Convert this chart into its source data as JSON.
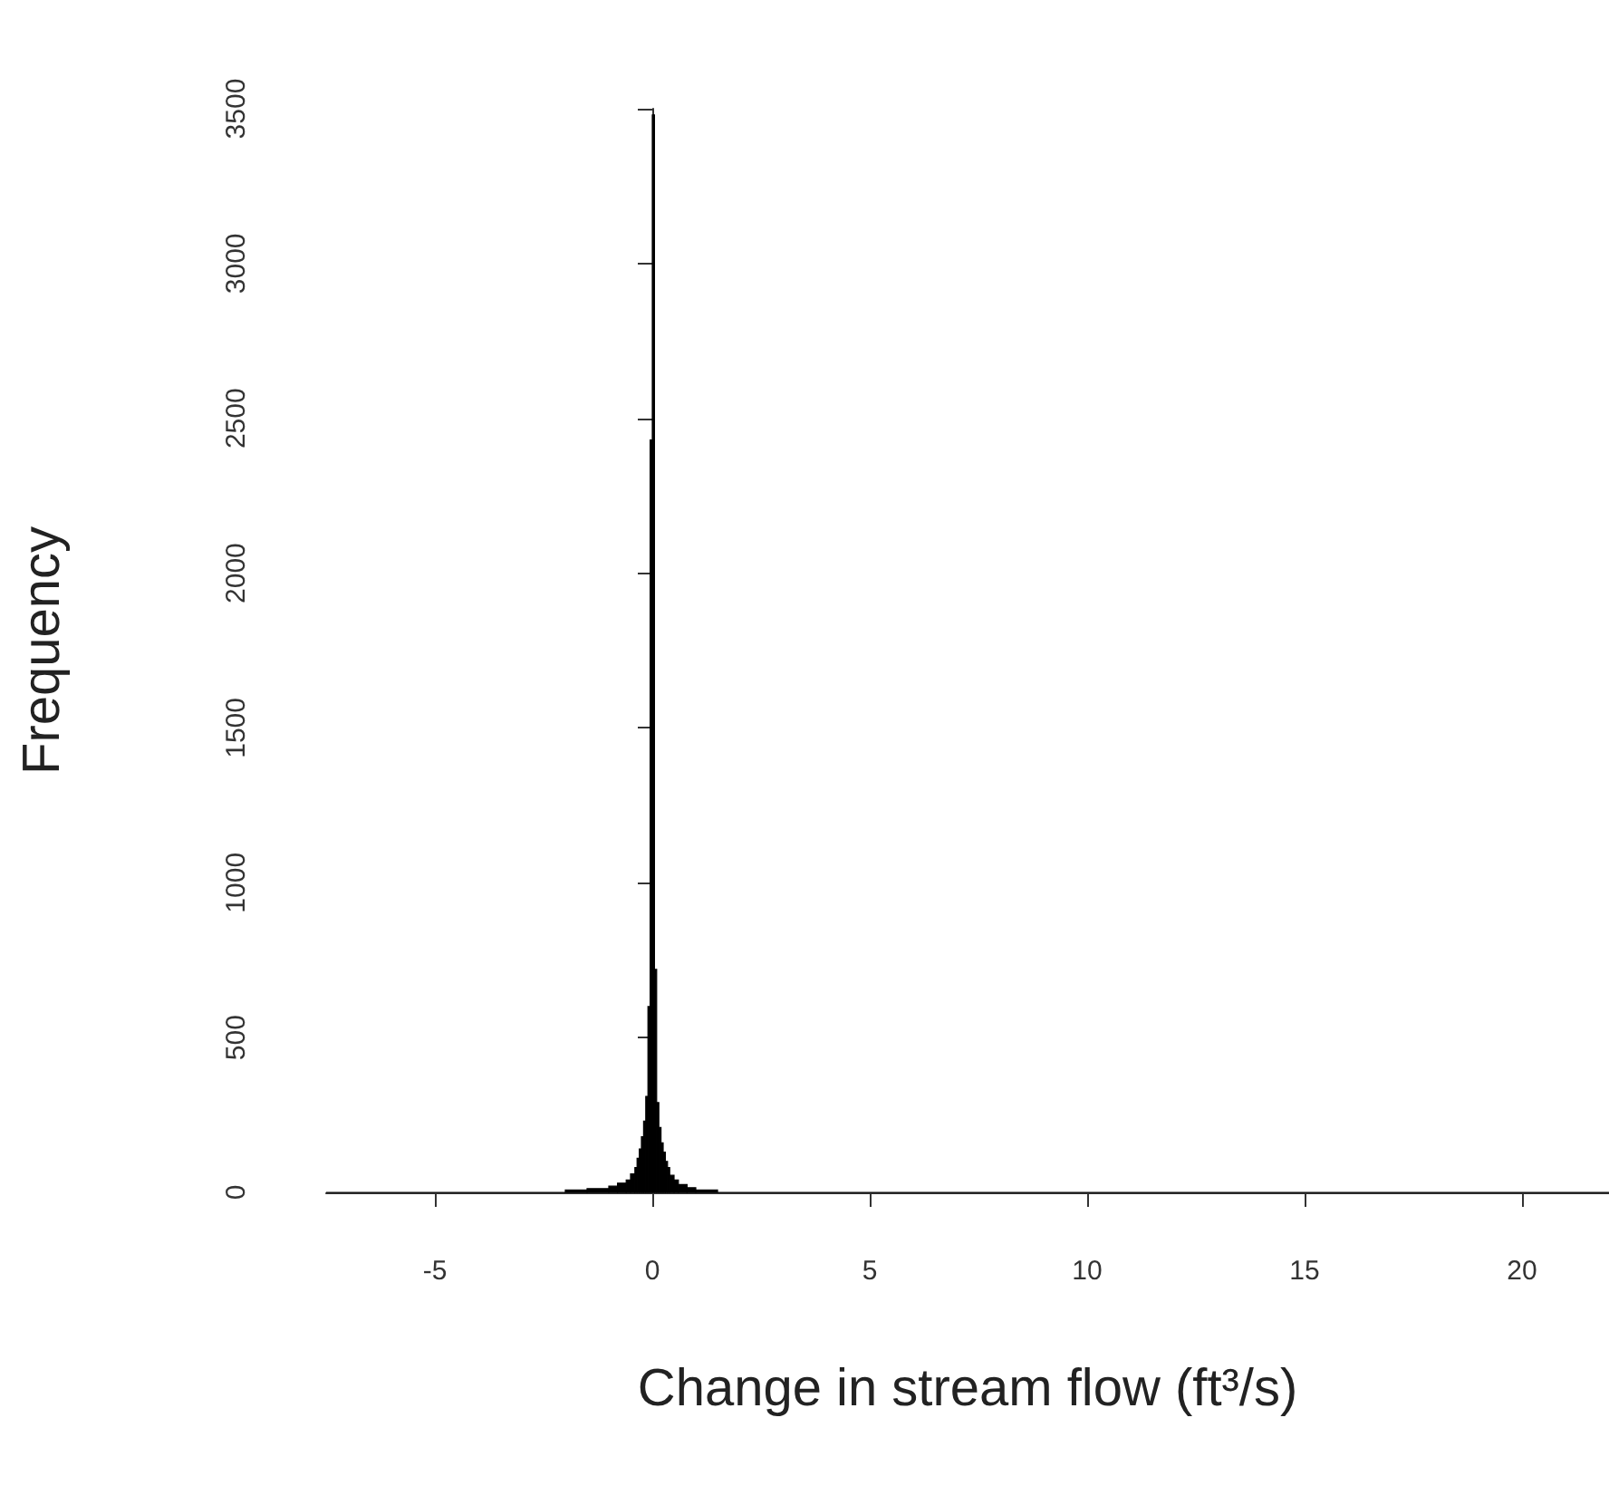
{
  "chart_data": {
    "type": "histogram",
    "xlabel": "Change in stream flow (ft³/s)",
    "ylabel": "Frequency",
    "color": "#000000",
    "bins": [
      -7.5,
      -5,
      -3,
      -2,
      -1.5,
      -1,
      -0.8,
      -0.6,
      -0.5,
      -0.4,
      -0.35,
      -0.3,
      -0.25,
      -0.2,
      -0.15,
      -0.1,
      -0.05,
      0,
      0.05,
      0.1,
      0.15,
      0.2,
      0.25,
      0.3,
      0.35,
      0.4,
      0.5,
      0.6,
      0.8,
      1,
      1.5,
      2,
      3,
      5,
      10,
      15,
      22
    ],
    "values": [
      0,
      0,
      0,
      8,
      12,
      20,
      30,
      40,
      60,
      80,
      110,
      140,
      180,
      230,
      310,
      600,
      2430,
      3480,
      720,
      290,
      210,
      160,
      130,
      100,
      80,
      55,
      40,
      25,
      15,
      8,
      0,
      0,
      0,
      0,
      0,
      0
    ],
    "xlim": [
      -7.5,
      22
    ],
    "xticks": [
      -5,
      0,
      5,
      10,
      15,
      20
    ],
    "ylim": [
      0,
      3500
    ],
    "yticks": [
      0,
      500,
      1000,
      1500,
      2000,
      2500,
      3000,
      3500
    ]
  }
}
